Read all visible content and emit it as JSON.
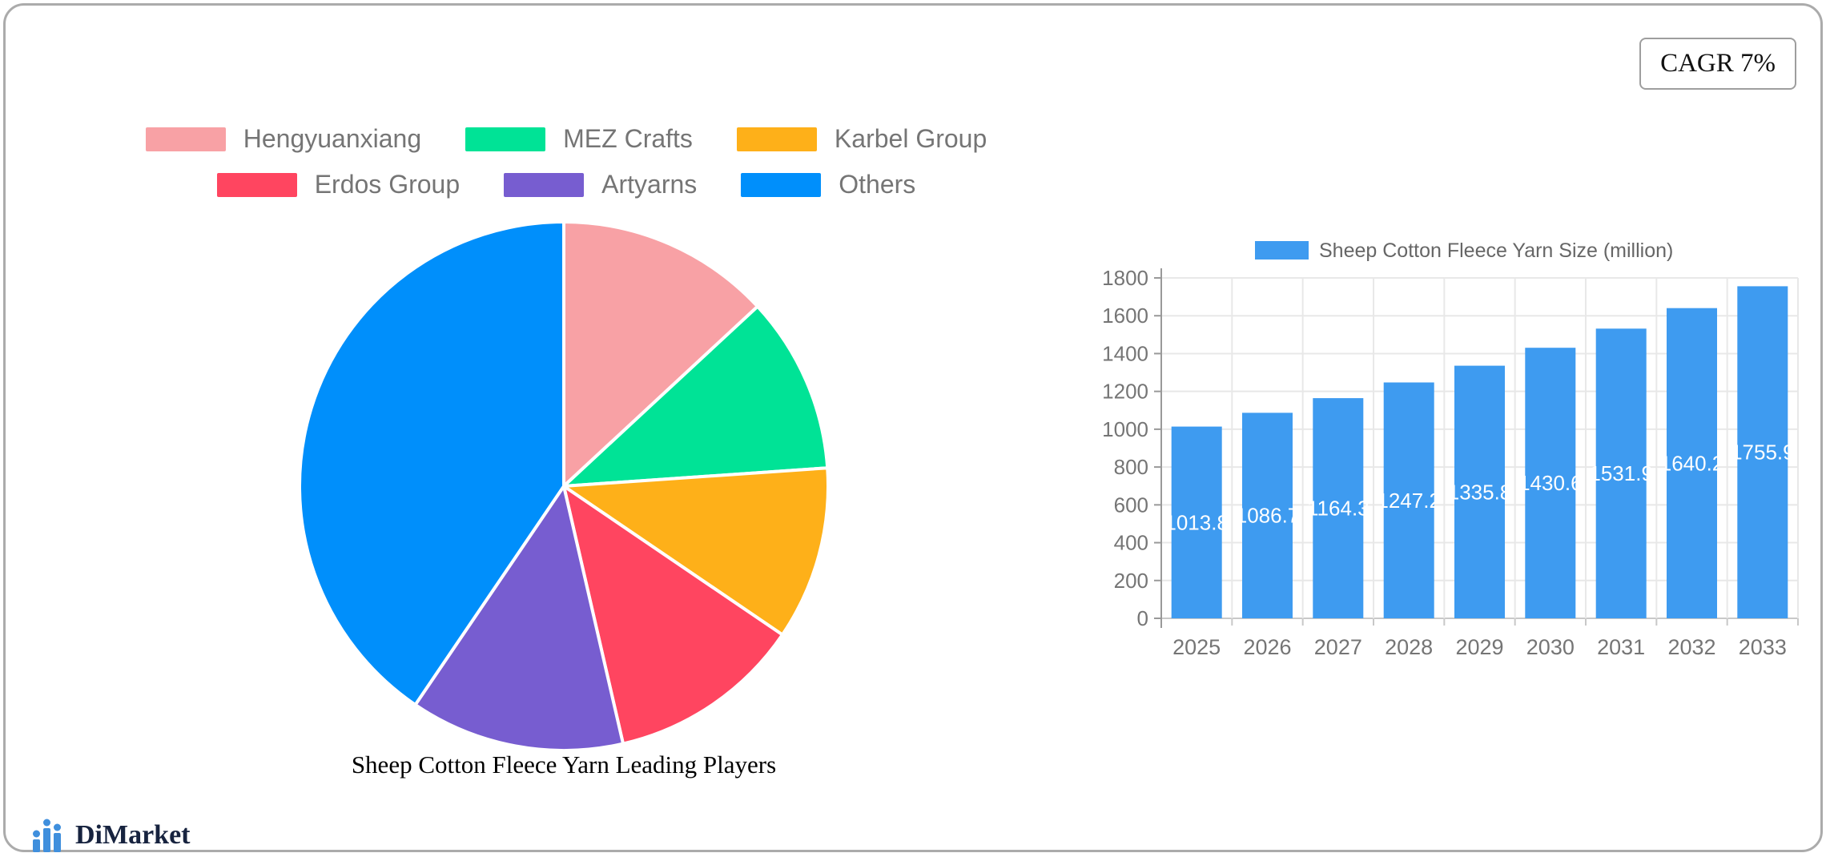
{
  "badge": {
    "label": "CAGR 7%"
  },
  "branding": {
    "name": "DiMarket"
  },
  "colors": {
    "card_border": "#ababab",
    "axis_text": "#757575",
    "grid_line": "#e8e8e8",
    "baseline": "#c8c8c8",
    "axis_line": "#999999",
    "value_label": "#ffffff",
    "bar_legend_text": "#666666",
    "logo_icon": "#3f8fdd",
    "logo_text": "#17233f"
  },
  "chart_data": [
    {
      "type": "pie",
      "title": "Sheep Cotton Fleece Yarn Leading Players",
      "legend_position": "top",
      "direction": "clockwise",
      "start_angle_deg": 0,
      "slices": [
        {
          "label": "Hengyuanxiang",
          "value": 13.1,
          "color": "#F8A1A5"
        },
        {
          "label": "MEZ Crafts",
          "value": 10.8,
          "color": "#00E396"
        },
        {
          "label": "Karbel Group",
          "value": 10.6,
          "color": "#FEB019"
        },
        {
          "label": "Erdos Group",
          "value": 11.9,
          "color": "#FF4560"
        },
        {
          "label": "Artyarns",
          "value": 13.1,
          "color": "#775DD0"
        },
        {
          "label": "Others",
          "value": 40.5,
          "color": "#008FFB"
        }
      ]
    },
    {
      "type": "bar",
      "legend_label": "Sheep Cotton Fleece Yarn Size (million)",
      "categories": [
        "2025",
        "2026",
        "2027",
        "2028",
        "2029",
        "2030",
        "2031",
        "2032",
        "2033"
      ],
      "values": [
        1013.8,
        1086.7,
        1164.3,
        1247.2,
        1335.8,
        1430.6,
        1531.9,
        1640.2,
        1755.9
      ],
      "bar_color": "#3E9BF0",
      "ylim": [
        0,
        1800
      ],
      "ytick_step": 200,
      "grid": true,
      "legend_position": "top"
    }
  ]
}
